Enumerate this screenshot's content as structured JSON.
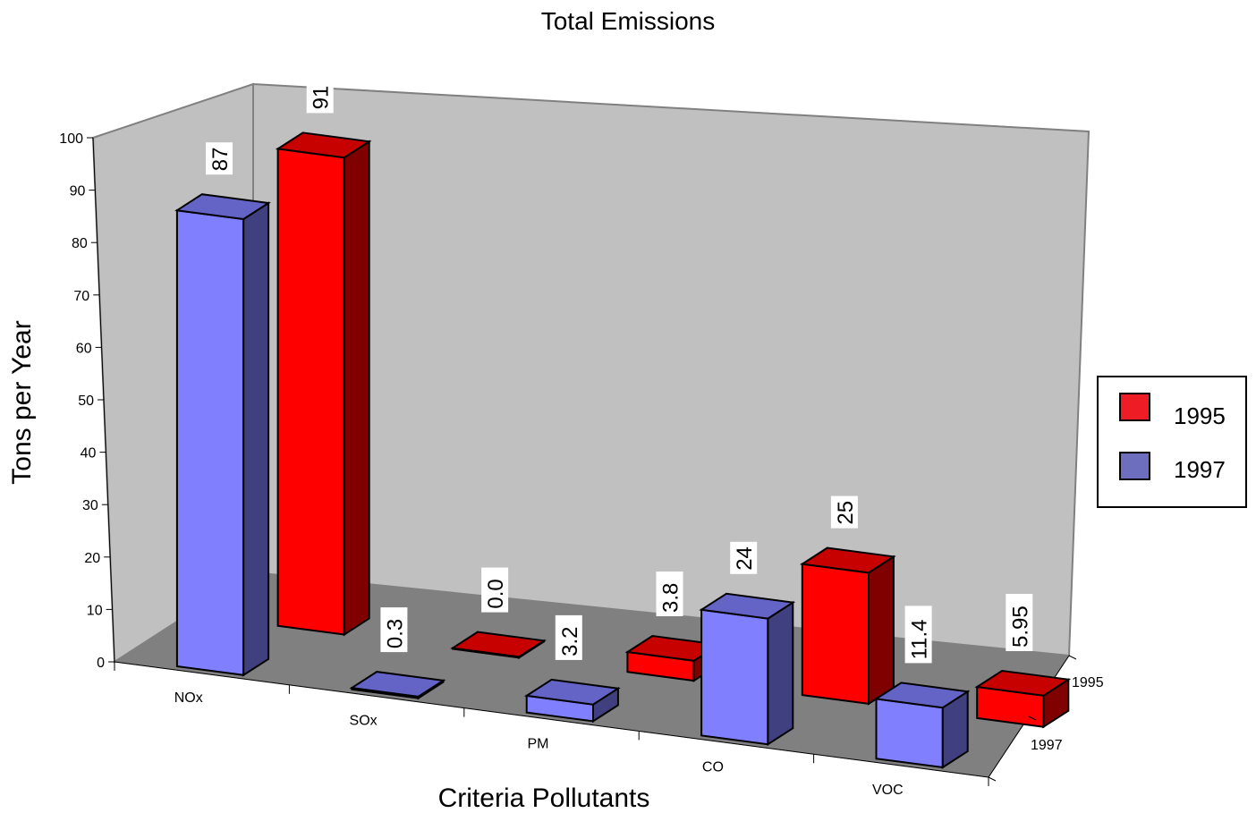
{
  "chart_data": {
    "type": "bar",
    "title": "Total Emissions",
    "xlabel": "Criteria Pollutants",
    "ylabel": "Tons per Year",
    "ylim": [
      0,
      100
    ],
    "yticks": [
      "0",
      "10",
      "20",
      "30",
      "40",
      "50",
      "60",
      "70",
      "80",
      "90",
      "100"
    ],
    "categories": [
      "NOx",
      "SOx",
      "PM",
      "CO",
      "VOC"
    ],
    "depth_labels": [
      "1995",
      "1997"
    ],
    "legend_position": "right",
    "series": [
      {
        "name": "1995",
        "color": "#ff0000",
        "values": [
          91,
          0.0,
          3.8,
          25,
          5.95
        ],
        "labels": [
          "91",
          "0.0",
          "3.8",
          "25",
          "5.95"
        ]
      },
      {
        "name": "1997",
        "color": "#8080ff",
        "values": [
          87,
          0.3,
          3.2,
          24,
          11.4
        ],
        "labels": [
          "87",
          "0.3",
          "3.2",
          "24",
          "11.4"
        ]
      }
    ]
  }
}
